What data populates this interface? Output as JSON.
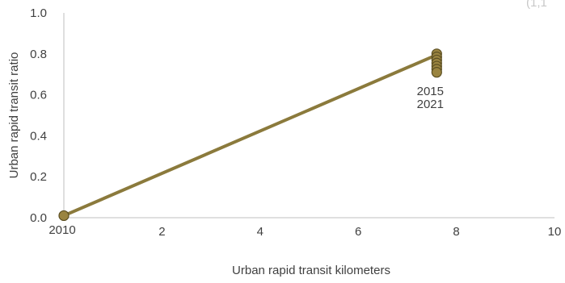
{
  "chart_data": {
    "type": "scatter",
    "xlabel": "Urban rapid transit kilometers",
    "ylabel": "Urban rapid transit ratio",
    "xlim": [
      0,
      10
    ],
    "ylim": [
      0,
      1.0
    ],
    "x_ticks": [
      "",
      "2",
      "4",
      "6",
      "8",
      "10"
    ],
    "y_ticks": [
      "0.0",
      "0.2",
      "0.4",
      "0.6",
      "0.8",
      "1.0"
    ],
    "grid": false,
    "corner_annotation": "(1,1",
    "trend_line": {
      "from": [
        0,
        0.01
      ],
      "to": [
        7.6,
        0.795
      ]
    },
    "colors": {
      "series": "#8b7a3c",
      "point_fill": "#9a8440",
      "point_edge": "#5c4f22",
      "axis": "#bfbfbf"
    },
    "points": [
      {
        "x": 0.0,
        "y": 0.01,
        "label": "2010"
      },
      {
        "x": 7.6,
        "y": 0.8,
        "label": ""
      },
      {
        "x": 7.6,
        "y": 0.785,
        "label": ""
      },
      {
        "x": 7.6,
        "y": 0.77,
        "label": ""
      },
      {
        "x": 7.6,
        "y": 0.755,
        "label": ""
      },
      {
        "x": 7.6,
        "y": 0.74,
        "label": ""
      },
      {
        "x": 7.6,
        "y": 0.725,
        "label": ""
      },
      {
        "x": 7.6,
        "y": 0.71,
        "label": ""
      }
    ],
    "point_labels": [
      "2015",
      "2021"
    ]
  }
}
